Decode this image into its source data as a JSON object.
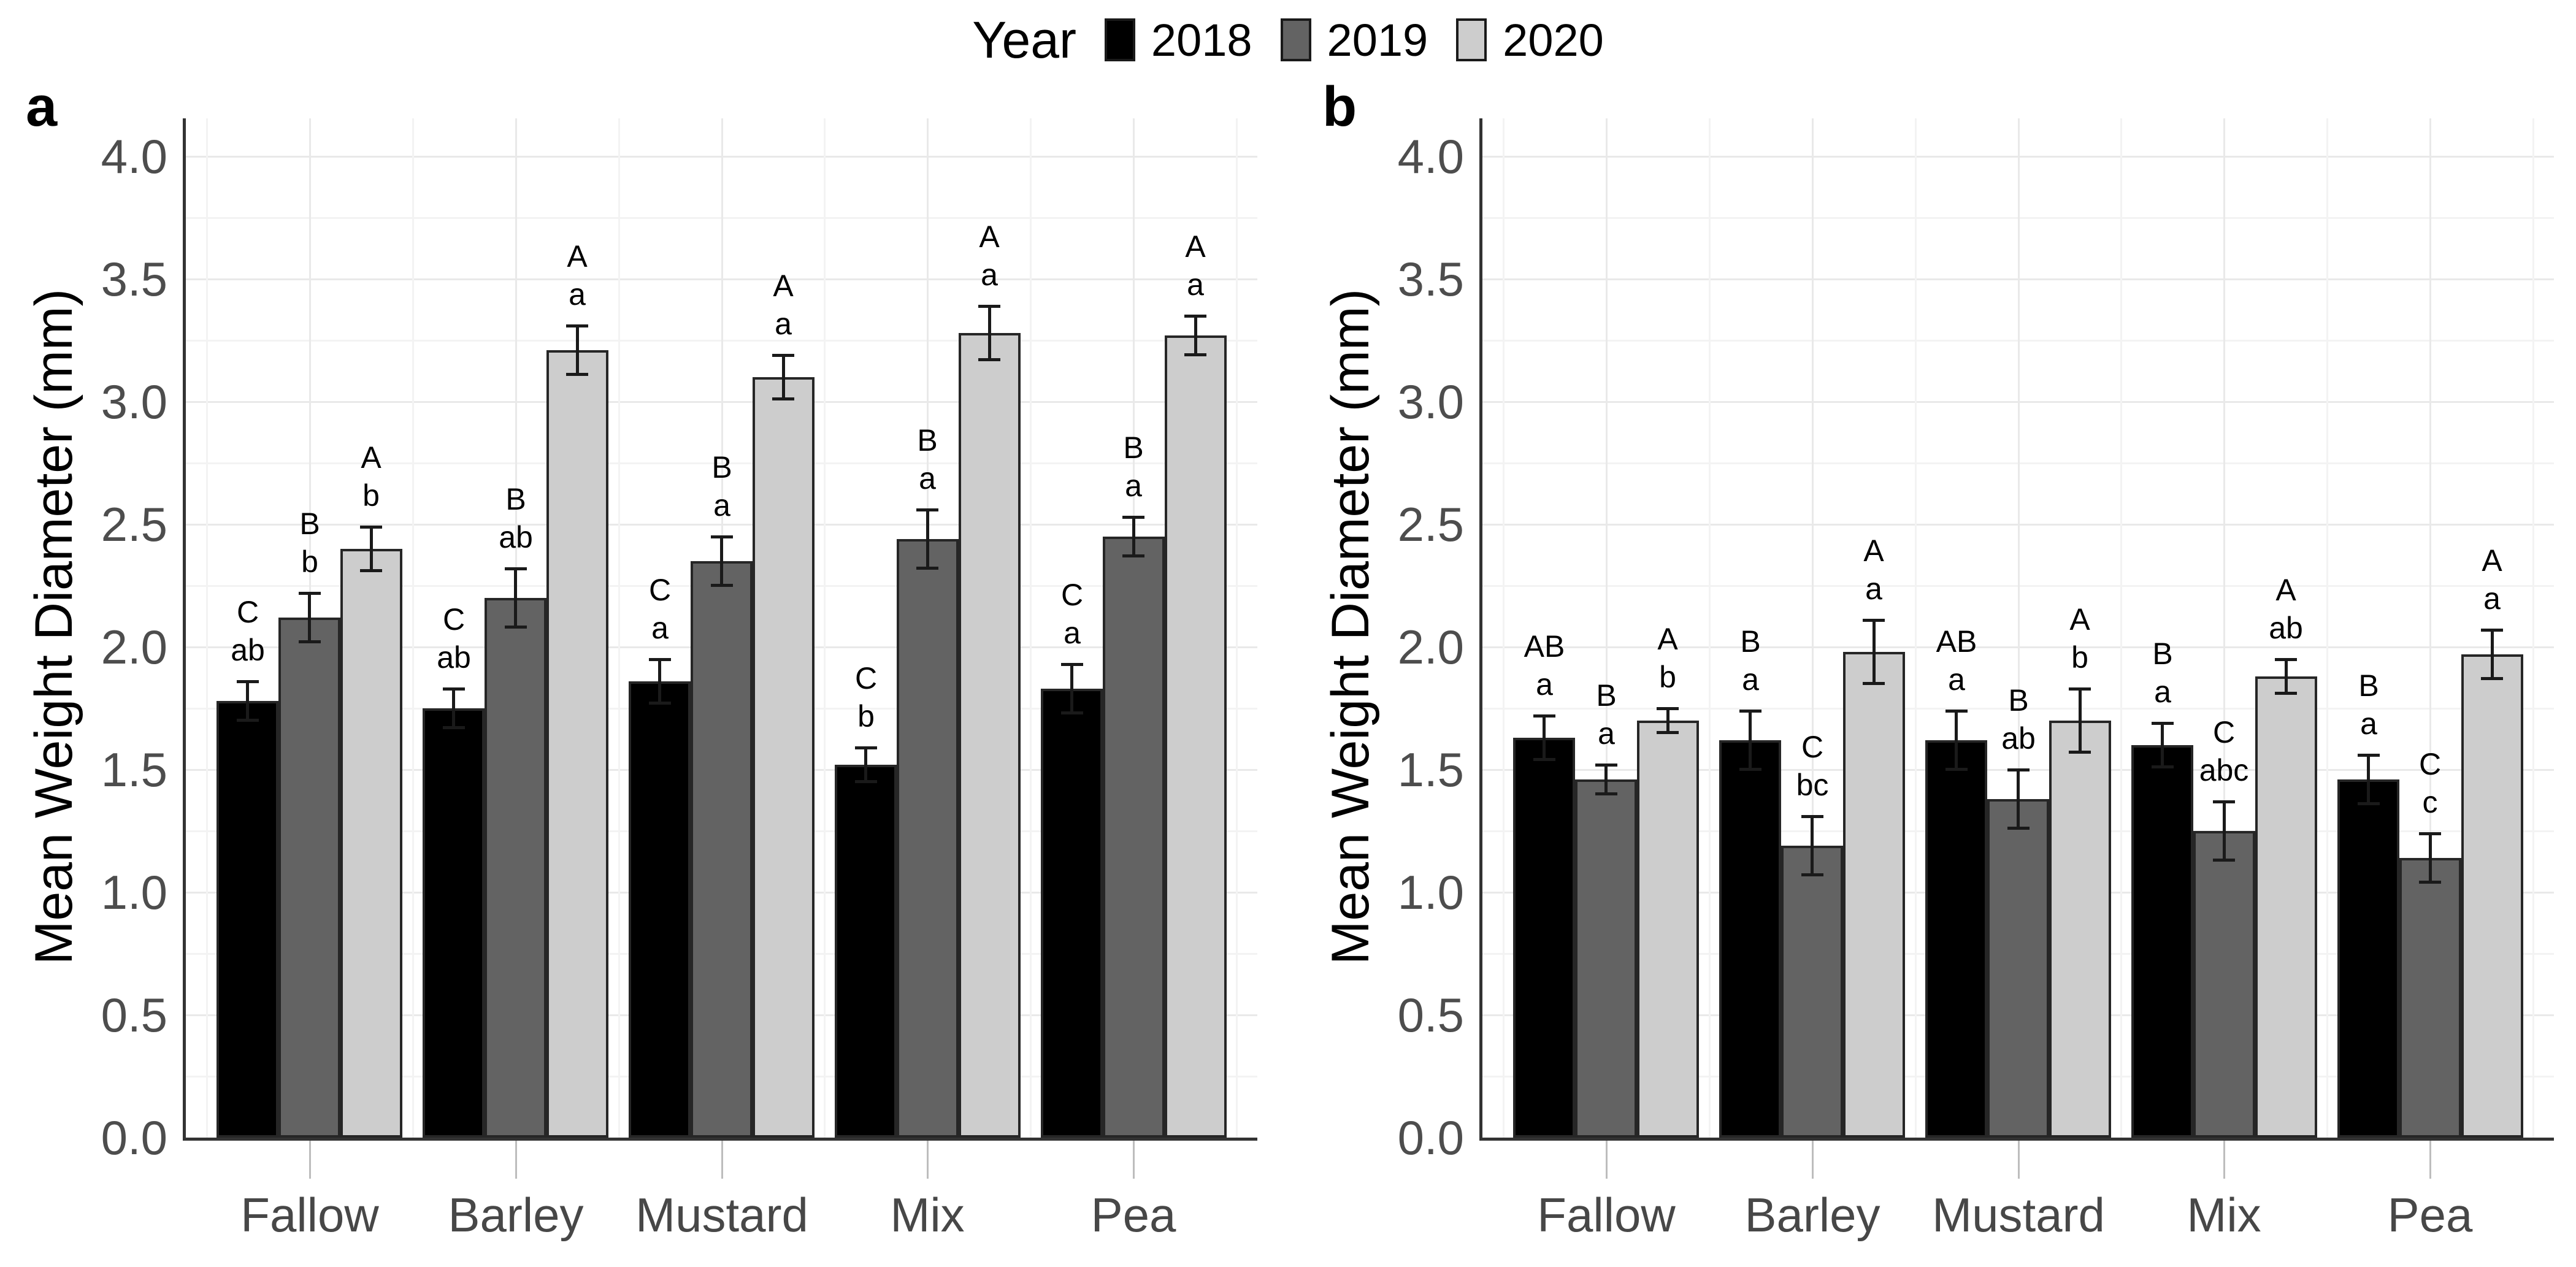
{
  "legend": {
    "title": "Year",
    "items": [
      {
        "label": "2018",
        "color": "#000000"
      },
      {
        "label": "2019",
        "color": "#636363"
      },
      {
        "label": "2020",
        "color": "#cdcdcd"
      }
    ]
  },
  "axes": {
    "y_label": "Mean Weight Diameter (mm)",
    "y_ticks": [
      "0.0",
      "0.5",
      "1.0",
      "1.5",
      "2.0",
      "2.5",
      "3.0",
      "3.5",
      "4.0"
    ],
    "x_categories": [
      "Fallow",
      "Barley",
      "Mustard",
      "Mix",
      "Pea"
    ]
  },
  "chart_data": [
    {
      "type": "bar",
      "panel_label": "a",
      "ylabel": "Mean Weight Diameter (mm)",
      "xlabel": "",
      "ylim": [
        0,
        4.15
      ],
      "legend_position": "top",
      "grid": true,
      "categories": [
        "Fallow",
        "Barley",
        "Mustard",
        "Mix",
        "Pea"
      ],
      "series": [
        {
          "name": "2018",
          "color": "#000000",
          "values": [
            1.78,
            1.75,
            1.86,
            1.52,
            1.83
          ],
          "errors": [
            0.08,
            0.08,
            0.09,
            0.07,
            0.1
          ],
          "letters_upper": [
            "C",
            "C",
            "C",
            "C",
            "C"
          ],
          "letters_lower": [
            "ab",
            "ab",
            "a",
            "b",
            "a"
          ]
        },
        {
          "name": "2019",
          "color": "#636363",
          "values": [
            2.12,
            2.2,
            2.35,
            2.44,
            2.45
          ],
          "errors": [
            0.1,
            0.12,
            0.1,
            0.12,
            0.08
          ],
          "letters_upper": [
            "B",
            "B",
            "B",
            "B",
            "B"
          ],
          "letters_lower": [
            "b",
            "ab",
            "a",
            "a",
            "a"
          ]
        },
        {
          "name": "2020",
          "color": "#cdcdcd",
          "values": [
            2.4,
            3.21,
            3.1,
            3.28,
            3.27
          ],
          "errors": [
            0.09,
            0.1,
            0.09,
            0.11,
            0.08
          ],
          "letters_upper": [
            "A",
            "A",
            "A",
            "A",
            "A"
          ],
          "letters_lower": [
            "b",
            "a",
            "a",
            "a",
            "a"
          ]
        }
      ]
    },
    {
      "type": "bar",
      "panel_label": "b",
      "ylabel": "Mean Weight Diameter (mm)",
      "xlabel": "",
      "ylim": [
        0,
        4.15
      ],
      "legend_position": "top",
      "grid": true,
      "categories": [
        "Fallow",
        "Barley",
        "Mustard",
        "Mix",
        "Pea"
      ],
      "series": [
        {
          "name": "2018",
          "color": "#000000",
          "values": [
            1.63,
            1.62,
            1.62,
            1.6,
            1.46
          ],
          "errors": [
            0.09,
            0.12,
            0.12,
            0.09,
            0.1
          ],
          "letters_upper": [
            "AB",
            "B",
            "AB",
            "B",
            "B"
          ],
          "letters_lower": [
            "a",
            "a",
            "a",
            "a",
            "a"
          ]
        },
        {
          "name": "2019",
          "color": "#636363",
          "values": [
            1.46,
            1.19,
            1.38,
            1.25,
            1.14
          ],
          "errors": [
            0.06,
            0.12,
            0.12,
            0.12,
            0.1
          ],
          "letters_upper": [
            "B",
            "C",
            "B",
            "C",
            "C"
          ],
          "letters_lower": [
            "a",
            "bc",
            "ab",
            "abc",
            "c"
          ]
        },
        {
          "name": "2020",
          "color": "#cdcdcd",
          "values": [
            1.7,
            1.98,
            1.7,
            1.88,
            1.97
          ],
          "errors": [
            0.05,
            0.13,
            0.13,
            0.07,
            0.1
          ],
          "letters_upper": [
            "A",
            "A",
            "A",
            "A",
            "A"
          ],
          "letters_lower": [
            "b",
            "a",
            "b",
            "ab",
            "a"
          ]
        }
      ]
    }
  ]
}
